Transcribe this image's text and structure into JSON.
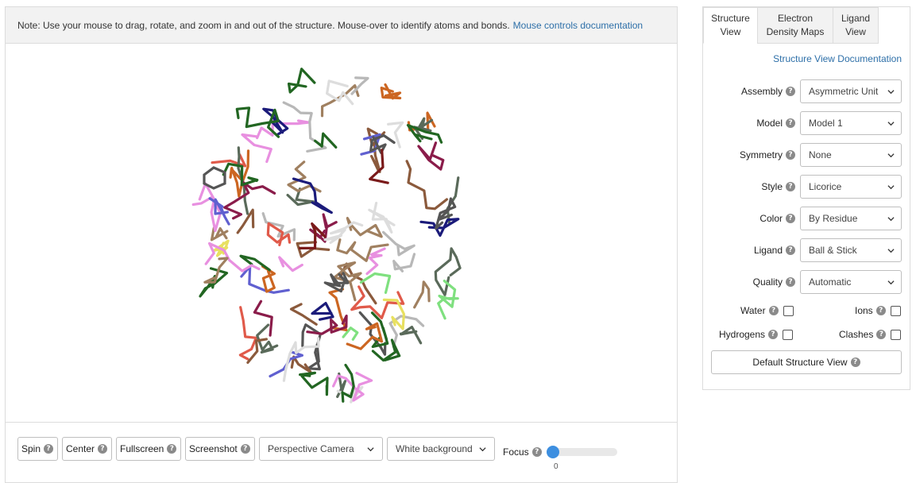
{
  "viewer": {
    "note_text": "Note: Use your mouse to drag, rotate, and zoom in and out of the structure. Mouse-over to identify atoms and bonds.",
    "note_link": "Mouse controls documentation",
    "help_glyph": "?",
    "toolbar": {
      "spin": "Spin",
      "center": "Center",
      "fullscreen": "Fullscreen",
      "screenshot": "Screenshot",
      "camera": "Perspective Camera",
      "background": "White background",
      "focus": "Focus",
      "focus_value": "0"
    },
    "molecule_colors": [
      "#1b1b7a",
      "#7a1a1a",
      "#8a1c4a",
      "#5a6a5a",
      "#555555",
      "#e8e060",
      "#e890e0",
      "#6060d0",
      "#7fe07f",
      "#cc6622",
      "#8b5a3c",
      "#a08060",
      "#dddddd",
      "#e05a4a",
      "#226622",
      "#b8b8b8"
    ]
  },
  "sidebar": {
    "tabs": [
      {
        "line1": "Structure",
        "line2": "View",
        "active": true
      },
      {
        "line1": "Electron",
        "line2": "Density Maps",
        "active": false
      },
      {
        "line1": "Ligand",
        "line2": "View",
        "active": false
      }
    ],
    "doc_link": "Structure View Documentation",
    "settings": [
      {
        "label": "Assembly",
        "value": "Asymmetric Unit"
      },
      {
        "label": "Model",
        "value": "Model 1"
      },
      {
        "label": "Symmetry",
        "value": "None"
      },
      {
        "label": "Style",
        "value": "Licorice"
      },
      {
        "label": "Color",
        "value": "By Residue"
      },
      {
        "label": "Ligand",
        "value": "Ball & Stick"
      },
      {
        "label": "Quality",
        "value": "Automatic"
      }
    ],
    "checks": {
      "water": "Water",
      "ions": "Ions",
      "hydrogens": "Hydrogens",
      "clashes": "Clashes"
    },
    "default_button": "Default Structure View"
  }
}
